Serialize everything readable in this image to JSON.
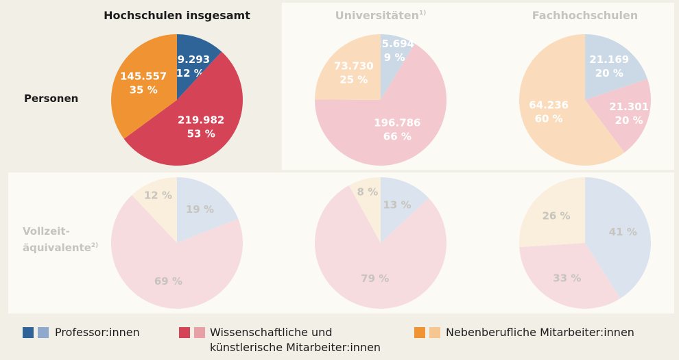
{
  "columns": {
    "total": "Hochschulen insgesamt",
    "uni": "Universitäten",
    "uni_note": "1)",
    "fh": "Fachhochschulen"
  },
  "rows": {
    "persons": "Personen",
    "fte_line1": "Vollzeit-",
    "fte_line2": "äquivalente",
    "fte_note": "2)"
  },
  "legend": {
    "prof": "Professor:innen",
    "wiss_line1": "Wissenschaftliche und",
    "wiss_line2": "künstlerische Mitarbeiter:innen",
    "neben": "Nebenberufliche Mitarbeiter:innen"
  },
  "colors": {
    "prof_dark": "#2f6499",
    "prof_light": "#8fa9cc",
    "wiss_dark": "#d44356",
    "wiss_light": "#e7a1a6",
    "neben_dark": "#ef9333",
    "neben_light": "#f6c690",
    "prof_faded": "#cbd9e6",
    "wiss_faded": "#f3c9cf",
    "neben_faded": "#fadcbd",
    "prof_faded2": "#dbe3ee",
    "wiss_faded2": "#f6dcdf",
    "neben_faded2": "#faeedc",
    "label_faded": "#c6c4bd"
  },
  "chart_data": [
    {
      "type": "pie",
      "column": "Hochschulen insgesamt",
      "row": "Personen",
      "slices": [
        {
          "category": "Professor:innen",
          "value": 49293,
          "value_label": "49.293",
          "pct_label": "12 %"
        },
        {
          "category": "Wissenschaftliche und künstlerische Mitarbeiter:innen",
          "value": 219982,
          "value_label": "219.982",
          "pct_label": "53 %"
        },
        {
          "category": "Nebenberufliche Mitarbeiter:innen",
          "value": 145557,
          "value_label": "145.557",
          "pct_label": "35 %"
        }
      ]
    },
    {
      "type": "pie",
      "column": "Universitäten",
      "row": "Personen",
      "slices": [
        {
          "category": "Professor:innen",
          "value": 25694,
          "value_label": "25.694",
          "pct_label": "9 %"
        },
        {
          "category": "Wissenschaftliche und künstlerische Mitarbeiter:innen",
          "value": 196786,
          "value_label": "196.786",
          "pct_label": "66 %"
        },
        {
          "category": "Nebenberufliche Mitarbeiter:innen",
          "value": 73730,
          "value_label": "73.730",
          "pct_label": "25 %"
        }
      ]
    },
    {
      "type": "pie",
      "column": "Fachhochschulen",
      "row": "Personen",
      "slices": [
        {
          "category": "Professor:innen",
          "value": 21169,
          "value_label": "21.169",
          "pct_label": "20 %"
        },
        {
          "category": "Wissenschaftliche und künstlerische Mitarbeiter:innen",
          "value": 21301,
          "value_label": "21.301",
          "pct_label": "20 %"
        },
        {
          "category": "Nebenberufliche Mitarbeiter:innen",
          "value": 64236,
          "value_label": "64.236",
          "pct_label": "60 %"
        }
      ]
    },
    {
      "type": "pie",
      "column": "Hochschulen insgesamt",
      "row": "Vollzeitäquivalente",
      "slices": [
        {
          "category": "Professor:innen",
          "value": 19,
          "pct_label": "19 %"
        },
        {
          "category": "Wissenschaftliche und künstlerische Mitarbeiter:innen",
          "value": 69,
          "pct_label": "69 %"
        },
        {
          "category": "Nebenberufliche Mitarbeiter:innen",
          "value": 12,
          "pct_label": "12 %"
        }
      ]
    },
    {
      "type": "pie",
      "column": "Universitäten",
      "row": "Vollzeitäquivalente",
      "slices": [
        {
          "category": "Professor:innen",
          "value": 13,
          "pct_label": "13 %"
        },
        {
          "category": "Wissenschaftliche und künstlerische Mitarbeiter:innen",
          "value": 79,
          "pct_label": "79 %"
        },
        {
          "category": "Nebenberufliche Mitarbeiter:innen",
          "value": 8,
          "pct_label": "8 %"
        }
      ]
    },
    {
      "type": "pie",
      "column": "Fachhochschulen",
      "row": "Vollzeitäquivalente",
      "slices": [
        {
          "category": "Professor:innen",
          "value": 41,
          "pct_label": "41 %"
        },
        {
          "category": "Wissenschaftliche und künstlerische Mitarbeiter:innen",
          "value": 33,
          "pct_label": "33 %"
        },
        {
          "category": "Nebenberufliche Mitarbeiter:innen",
          "value": 26,
          "pct_label": "26 %"
        }
      ]
    }
  ]
}
